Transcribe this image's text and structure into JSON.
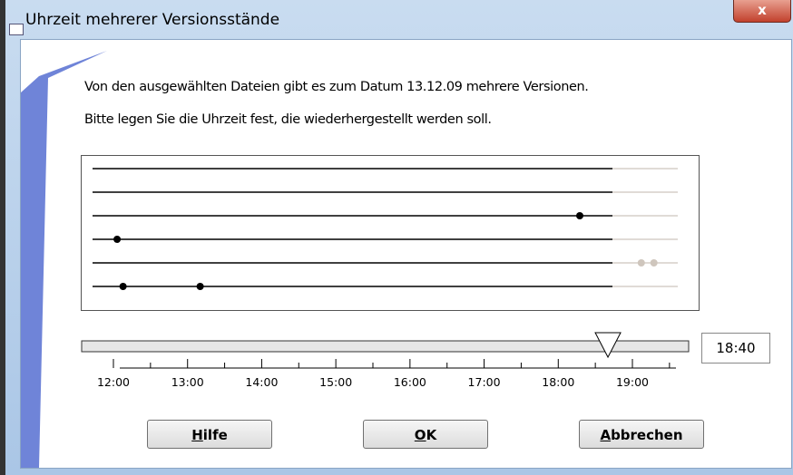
{
  "window": {
    "title": "Uhrzeit mehrerer Versionsstände"
  },
  "message": {
    "line1": "Von den ausgewählten Dateien gibt es zum Datum 13.12.09 mehrere Versionen.",
    "line2": "Bitte legen Sie die Uhrzeit fest, die wiederhergestellt werden soll."
  },
  "timeline": {
    "rows": [
      {
        "versions": []
      },
      {
        "versions": []
      },
      {
        "versions": [
          18.29
        ]
      },
      {
        "versions": [
          12.05
        ]
      },
      {
        "versions": [
          19.12,
          19.29
        ]
      },
      {
        "versions": [
          12.13,
          13.17
        ]
      }
    ],
    "ticks": [
      {
        "value": 12,
        "label": "12:00"
      },
      {
        "value": 13,
        "label": "13:00"
      },
      {
        "value": 14,
        "label": "14:00"
      },
      {
        "value": 15,
        "label": "15:00"
      },
      {
        "value": 16,
        "label": "16:00"
      },
      {
        "value": 17,
        "label": "17:00"
      },
      {
        "value": 18,
        "label": "18:00"
      },
      {
        "value": 19,
        "label": "19:00"
      }
    ],
    "slider_value": 18.67,
    "time_field": "18:40"
  },
  "buttons": {
    "help": "Hilfe",
    "ok": "OK",
    "cancel": "Abbrechen"
  }
}
